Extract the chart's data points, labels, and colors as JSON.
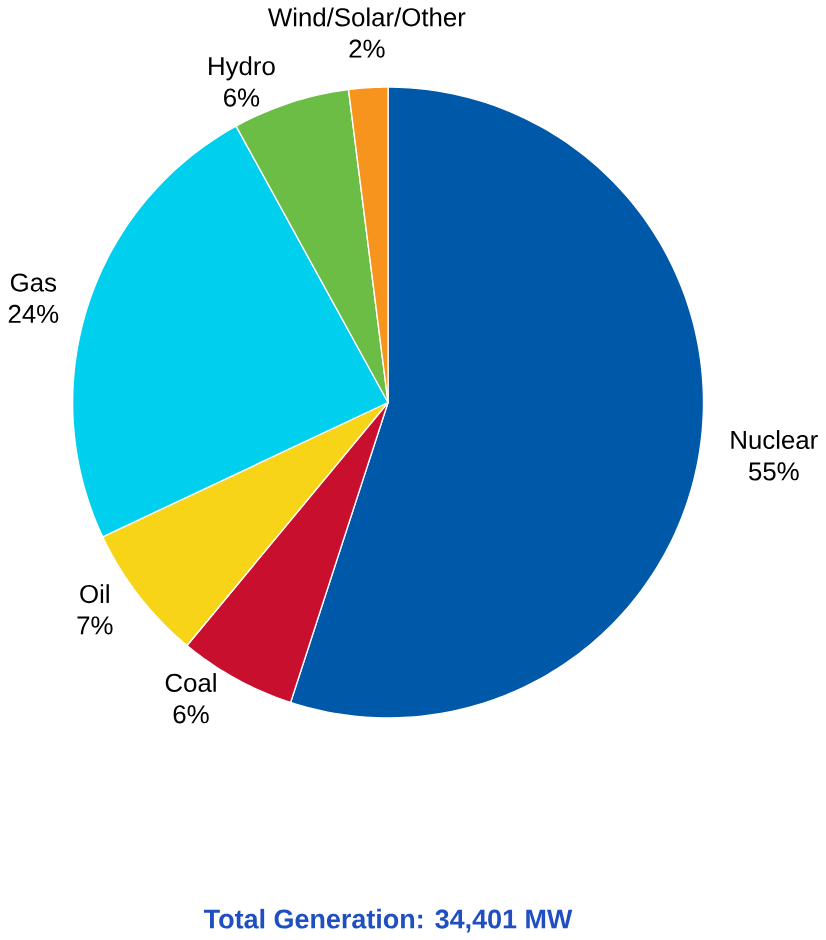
{
  "chart_data": {
    "type": "pie",
    "title": "Total Generation: 34,401 MW",
    "categories": [
      "Nuclear",
      "Coal",
      "Oil",
      "Gas",
      "Hydro",
      "Wind/Solar/Other"
    ],
    "values": [
      55,
      6,
      7,
      24,
      6,
      2
    ],
    "value_labels": [
      "55%",
      "6%",
      "7%",
      "24%",
      "6%",
      "2%"
    ],
    "colors": [
      "#0058a8",
      "#c8102e",
      "#f7d417",
      "#00d0ee",
      "#6cbd45",
      "#f7941d"
    ]
  }
}
